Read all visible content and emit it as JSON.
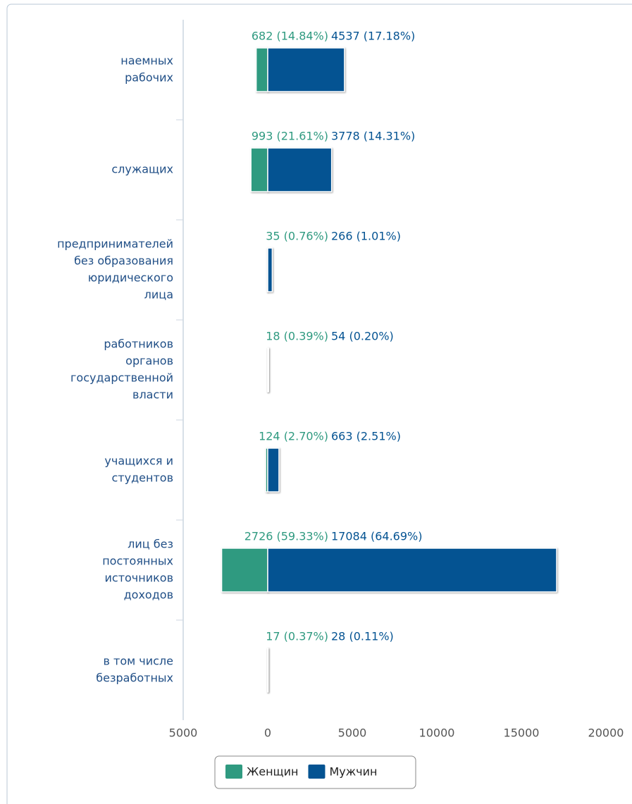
{
  "chart_data": {
    "type": "bar",
    "categories": [
      [
        "наемных",
        "рабочих"
      ],
      [
        "служащих"
      ],
      [
        "предпринимателей",
        "без образования",
        "юридического",
        "лица"
      ],
      [
        "работников",
        "органов",
        "государственной",
        "власти"
      ],
      [
        "учащихся и",
        "студентов"
      ],
      [
        "лиц без",
        "постоянных",
        "источников",
        "доходов"
      ],
      [
        "в том числе",
        "безработных"
      ]
    ],
    "series": [
      {
        "name": "Женщин",
        "color": "#2f9a80",
        "values": [
          -682,
          -993,
          -35,
          -18,
          -124,
          -2726,
          -17
        ],
        "value_labels": [
          "682 (14.84%)",
          "993 (21.61%)",
          "35 (0.76%)",
          "18 (0.39%)",
          "124 (2.70%)",
          "2726 (59.33%)",
          "17 (0.37%)"
        ]
      },
      {
        "name": "Мужчин",
        "color": "#045392",
        "values": [
          4537,
          3778,
          266,
          54,
          663,
          17084,
          28
        ],
        "value_labels": [
          "4537 (17.18%)",
          "3778 (14.31%)",
          "266 (1.01%)",
          "54 (0.20%)",
          "663 (2.51%)",
          "17084 (64.69%)",
          "28 (0.11%)"
        ]
      }
    ],
    "xlim": [
      -5000,
      20000
    ],
    "xticks": [
      {
        "value": -5000,
        "label": "5000"
      },
      0,
      5000,
      10000,
      15000,
      20000
    ],
    "legend": "bottom"
  }
}
